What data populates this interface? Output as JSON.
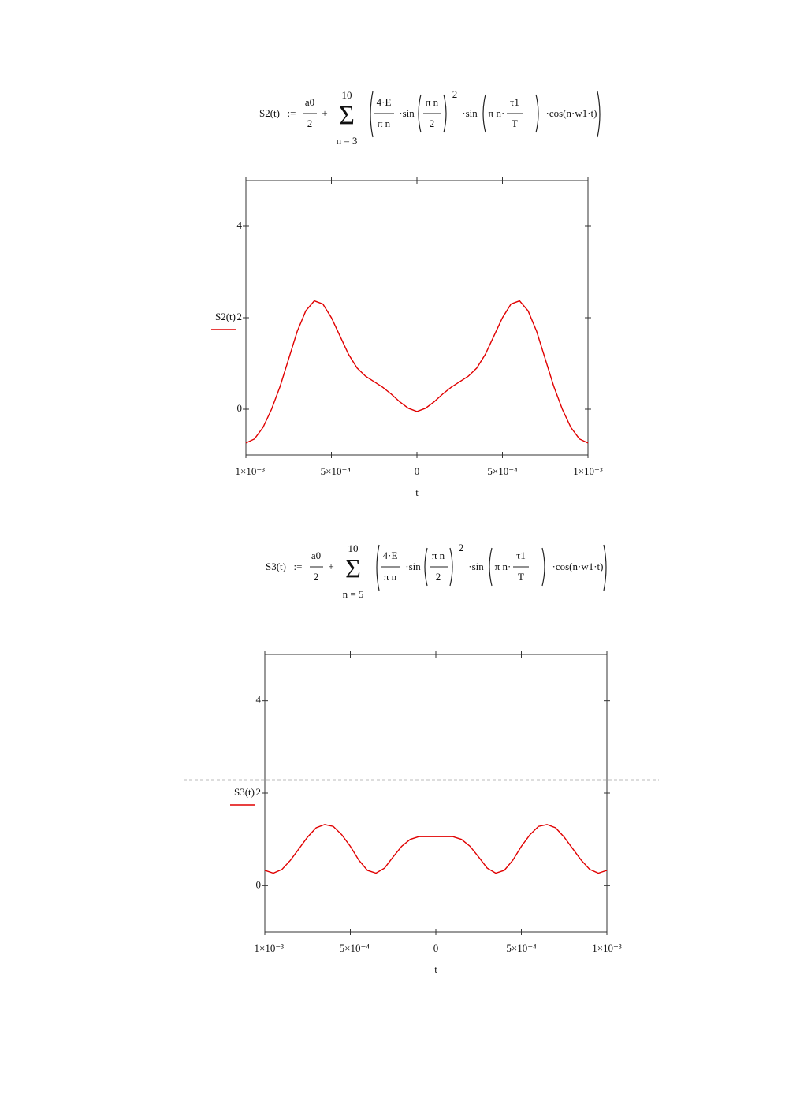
{
  "formulas": [
    {
      "lhs": "S2(t)",
      "assign": ":=",
      "a0": "a0",
      "two": "2",
      "plus": "+",
      "upper": "10",
      "sigma": "Σ",
      "lower": "n = 3",
      "num": "4·E",
      "den": "π n",
      "sin1": "·sin",
      "arg_num": "π n",
      "arg_den": "2",
      "power": "2",
      "sin2": "·sin",
      "arg2": "π n·",
      "tau": "τ1",
      "T": "T",
      "cos": "·cos(n·w1·t)"
    },
    {
      "lhs": "S3(t)",
      "assign": ":=",
      "a0": "a0",
      "two": "2",
      "plus": "+",
      "upper": "10",
      "sigma": "Σ",
      "lower": "n = 5",
      "num": "4·E",
      "den": "π n",
      "sin1": "·sin",
      "arg_num": "π n",
      "arg_den": "2",
      "power": "2",
      "sin2": "·sin",
      "arg2": "π n·",
      "tau": "τ1",
      "T": "T",
      "cos": "·cos(n·w1·t)"
    }
  ],
  "chart_data": [
    {
      "type": "line",
      "x": [
        -0.001,
        -0.00095,
        -0.0009,
        -0.00085,
        -0.0008,
        -0.00075,
        -0.0007,
        -0.00065,
        -0.0006,
        -0.00055,
        -0.0005,
        -0.00045,
        -0.0004,
        -0.00035,
        -0.0003,
        -0.00025,
        -0.0002,
        -0.00015,
        -0.0001,
        -5e-05,
        0,
        5e-05,
        0.0001,
        0.00015,
        0.0002,
        0.00025,
        0.0003,
        0.00035,
        0.0004,
        0.00045,
        0.0005,
        0.00055,
        0.0006,
        0.00065,
        0.0007,
        0.00075,
        0.0008,
        0.00085,
        0.0009,
        0.00095,
        0.001
      ],
      "series": [
        {
          "name": "S2(t)",
          "color": "#e00000",
          "values": [
            -0.74,
            -0.65,
            -0.4,
            0,
            0.5,
            1.1,
            1.7,
            2.15,
            2.37,
            2.3,
            2.0,
            1.6,
            1.2,
            0.9,
            0.72,
            0.6,
            0.48,
            0.33,
            0.16,
            0.02,
            -0.05,
            0.02,
            0.16,
            0.33,
            0.48,
            0.6,
            0.72,
            0.9,
            1.2,
            1.6,
            2.0,
            2.3,
            2.37,
            2.15,
            1.7,
            1.1,
            0.5,
            0,
            -0.4,
            -0.65,
            -0.74
          ]
        }
      ],
      "xlabel": "t",
      "xlim": [
        -0.001,
        0.001
      ],
      "xticks": [
        {
          "value": -0.001,
          "label": "− 1×10⁻³"
        },
        {
          "value": -0.0005,
          "label": "− 5×10⁻⁴"
        },
        0,
        {
          "value": 0.0005,
          "label": "5×10⁻⁴"
        },
        {
          "value": 0.001,
          "label": "1×10⁻³"
        }
      ],
      "ylim": [
        -1,
        5
      ],
      "yticks": [
        0,
        2,
        4
      ]
    },
    {
      "type": "line",
      "x": [
        -0.001,
        -0.00095,
        -0.0009,
        -0.00085,
        -0.0008,
        -0.00075,
        -0.0007,
        -0.00065,
        -0.0006,
        -0.00055,
        -0.0005,
        -0.00045,
        -0.0004,
        -0.00035,
        -0.0003,
        -0.00025,
        -0.0002,
        -0.00015,
        -0.0001,
        -5e-05,
        0,
        5e-05,
        0.0001,
        0.00015,
        0.0002,
        0.00025,
        0.0003,
        0.00035,
        0.0004,
        0.00045,
        0.0005,
        0.00055,
        0.0006,
        0.00065,
        0.0007,
        0.00075,
        0.0008,
        0.00085,
        0.0009,
        0.00095,
        0.001
      ],
      "series": [
        {
          "name": "S3(t)",
          "color": "#e00000",
          "values": [
            0.33,
            0.27,
            0.35,
            0.55,
            0.8,
            1.05,
            1.25,
            1.32,
            1.28,
            1.1,
            0.85,
            0.55,
            0.33,
            0.27,
            0.38,
            0.62,
            0.85,
            1.0,
            1.06,
            1.06,
            1.06,
            1.06,
            1.06,
            1.0,
            0.85,
            0.62,
            0.38,
            0.27,
            0.33,
            0.55,
            0.85,
            1.1,
            1.28,
            1.32,
            1.25,
            1.05,
            0.8,
            0.55,
            0.35,
            0.27,
            0.33
          ]
        }
      ],
      "xlabel": "t",
      "xlim": [
        -0.001,
        0.001
      ],
      "xticks": [
        {
          "value": -0.001,
          "label": "− 1×10⁻³"
        },
        {
          "value": -0.0005,
          "label": "− 5×10⁻⁴"
        },
        0,
        {
          "value": 0.0005,
          "label": "5×10⁻⁴"
        },
        {
          "value": 0.001,
          "label": "1×10⁻³"
        }
      ],
      "ylim": [
        -1,
        5
      ],
      "yticks": [
        0,
        2,
        4
      ]
    }
  ]
}
